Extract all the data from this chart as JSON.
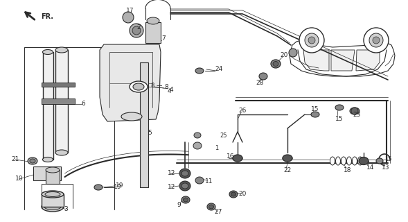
{
  "bg_color": "#ffffff",
  "line_color": "#2a2a2a",
  "fig_width": 5.89,
  "fig_height": 3.2,
  "dpi": 100
}
